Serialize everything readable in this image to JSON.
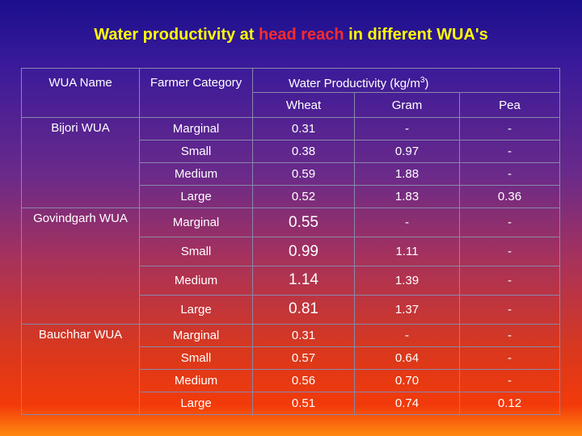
{
  "title": {
    "part1": "Water productivity at ",
    "highlight": "head reach",
    "part2": " in different WUA's"
  },
  "headers": {
    "wua_name": "WUA Name",
    "farmer_category": "Farmer Category",
    "wp_prefix": "Water Productivity (kg/m",
    "wp_sup": "3",
    "wp_suffix": ")",
    "wheat": "Wheat",
    "gram": "Gram",
    "pea": "Pea"
  },
  "groups": [
    {
      "wua": "Bijori WUA",
      "rows": [
        {
          "category": "Marginal",
          "wheat": "0.31",
          "gram": "-",
          "pea": "-"
        },
        {
          "category": "Small",
          "wheat": "0.38",
          "gram": "0.97",
          "pea": "-"
        },
        {
          "category": "Medium",
          "wheat": "0.59",
          "gram": "1.88",
          "pea": "-"
        },
        {
          "category": "Large",
          "wheat": "0.52",
          "gram": "1.83",
          "pea": "0.36"
        }
      ]
    },
    {
      "wua": "Govindgarh WUA",
      "rows": [
        {
          "category": "Marginal",
          "wheat": "0.55",
          "gram": "-",
          "pea": "-"
        },
        {
          "category": "Small",
          "wheat": "0.99",
          "gram": "1.11",
          "pea": "-"
        },
        {
          "category": "Medium",
          "wheat": "1.14",
          "gram": "1.39",
          "pea": "-"
        },
        {
          "category": "Large",
          "wheat": "0.81",
          "gram": "1.37",
          "pea": "-"
        }
      ]
    },
    {
      "wua": "Bauchhar WUA",
      "rows": [
        {
          "category": "Marginal",
          "wheat": "0.31",
          "gram": "-",
          "pea": "-"
        },
        {
          "category": "Small",
          "wheat": "0.57",
          "gram": "0.64",
          "pea": "-"
        },
        {
          "category": "Medium",
          "wheat": "0.56",
          "gram": "0.70",
          "pea": "-"
        },
        {
          "category": "Large",
          "wheat": "0.51",
          "gram": "0.74",
          "pea": "0.12"
        }
      ]
    }
  ]
}
